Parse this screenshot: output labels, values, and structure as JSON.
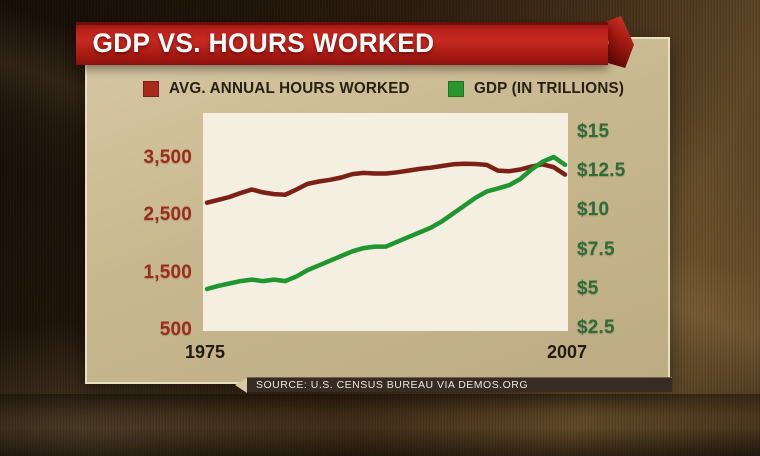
{
  "title": {
    "text": "GDP VS. HOURS WORKED"
  },
  "legend": [
    {
      "label": "AVG. ANNUAL HOURS WORKED",
      "color": "#a8291e"
    },
    {
      "label": "GDP (IN TRILLIONS)",
      "color": "#27982e"
    }
  ],
  "chart_data": {
    "type": "line",
    "title": "GDP VS. HOURS WORKED",
    "x_label_ticks": [
      "1975",
      "2007"
    ],
    "x": [
      1975,
      1976,
      1977,
      1978,
      1979,
      1980,
      1981,
      1982,
      1983,
      1984,
      1985,
      1986,
      1987,
      1988,
      1989,
      1990,
      1991,
      1992,
      1993,
      1994,
      1995,
      1996,
      1997,
      1998,
      1999,
      2000,
      2001,
      2002,
      2003,
      2004,
      2005,
      2006,
      2007
    ],
    "series": [
      {
        "name": "AVG. ANNUAL HOURS WORKED",
        "axis": "left",
        "color": "#7c2015",
        "values": [
          2720,
          2770,
          2820,
          2890,
          2950,
          2900,
          2870,
          2860,
          2950,
          3050,
          3090,
          3120,
          3160,
          3220,
          3240,
          3230,
          3230,
          3250,
          3280,
          3310,
          3330,
          3360,
          3390,
          3400,
          3395,
          3380,
          3280,
          3270,
          3300,
          3350,
          3390,
          3340,
          3210
        ]
      },
      {
        "name": "GDP (IN TRILLIONS)",
        "axis": "right",
        "color": "#1f9630",
        "values": [
          5.0,
          5.2,
          5.35,
          5.5,
          5.6,
          5.5,
          5.6,
          5.5,
          5.8,
          6.2,
          6.5,
          6.8,
          7.1,
          7.4,
          7.6,
          7.7,
          7.7,
          8.0,
          8.3,
          8.6,
          8.9,
          9.3,
          9.8,
          10.3,
          10.8,
          11.2,
          11.4,
          11.6,
          12.0,
          12.6,
          13.1,
          13.4,
          12.9
        ]
      }
    ],
    "left_axis": {
      "color": "#9b2d1e",
      "range": [
        500,
        4285
      ],
      "ticks": [
        {
          "label": "3,500",
          "value": 3500
        },
        {
          "label": "2,500",
          "value": 2500
        },
        {
          "label": "1,500",
          "value": 1500
        },
        {
          "label": "500",
          "value": 500
        }
      ]
    },
    "right_axis": {
      "color": "#2e6b35",
      "range": [
        2.5,
        16.2
      ],
      "ticks": [
        {
          "label": "$15",
          "value": 15
        },
        {
          "label": "$12.5",
          "value": 12.5
        },
        {
          "label": "$10",
          "value": 10
        },
        {
          "label": "$7.5",
          "value": 7.5
        },
        {
          "label": "$5",
          "value": 5
        },
        {
          "label": "$2.5",
          "value": 2.5
        }
      ]
    },
    "grid": false,
    "legend_position": "top"
  },
  "source": {
    "text": "SOURCE: U.S. CENSUS BUREAU VIA DEMOS.ORG"
  }
}
